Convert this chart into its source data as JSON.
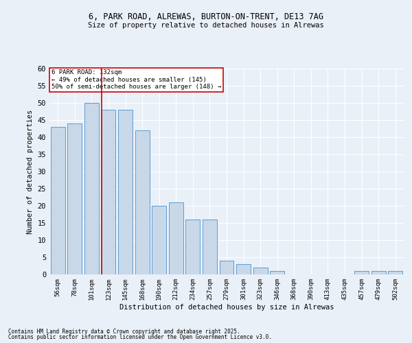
{
  "title_line1": "6, PARK ROAD, ALREWAS, BURTON-ON-TRENT, DE13 7AG",
  "title_line2": "Size of property relative to detached houses in Alrewas",
  "xlabel": "Distribution of detached houses by size in Alrewas",
  "ylabel": "Number of detached properties",
  "bar_labels": [
    "56sqm",
    "78sqm",
    "101sqm",
    "123sqm",
    "145sqm",
    "168sqm",
    "190sqm",
    "212sqm",
    "234sqm",
    "257sqm",
    "279sqm",
    "301sqm",
    "323sqm",
    "346sqm",
    "368sqm",
    "390sqm",
    "413sqm",
    "435sqm",
    "457sqm",
    "479sqm",
    "502sqm"
  ],
  "bar_values": [
    43,
    44,
    50,
    48,
    48,
    42,
    20,
    21,
    16,
    16,
    4,
    3,
    2,
    1,
    0,
    0,
    0,
    0,
    1,
    1,
    1
  ],
  "bar_color": "#c8d8e8",
  "bar_edge_color": "#5b9bd5",
  "background_color": "#eaf0f8",
  "grid_color": "#ffffff",
  "vline_color": "#cc0000",
  "annotation_title": "6 PARK ROAD: 132sqm",
  "annotation_line1": "← 49% of detached houses are smaller (145)",
  "annotation_line2": "50% of semi-detached houses are larger (148) →",
  "annotation_box_color": "#cc0000",
  "ylim": [
    0,
    60
  ],
  "yticks": [
    0,
    5,
    10,
    15,
    20,
    25,
    30,
    35,
    40,
    45,
    50,
    55,
    60
  ],
  "footnote1": "Contains HM Land Registry data © Crown copyright and database right 2025.",
  "footnote2": "Contains public sector information licensed under the Open Government Licence v3.0."
}
